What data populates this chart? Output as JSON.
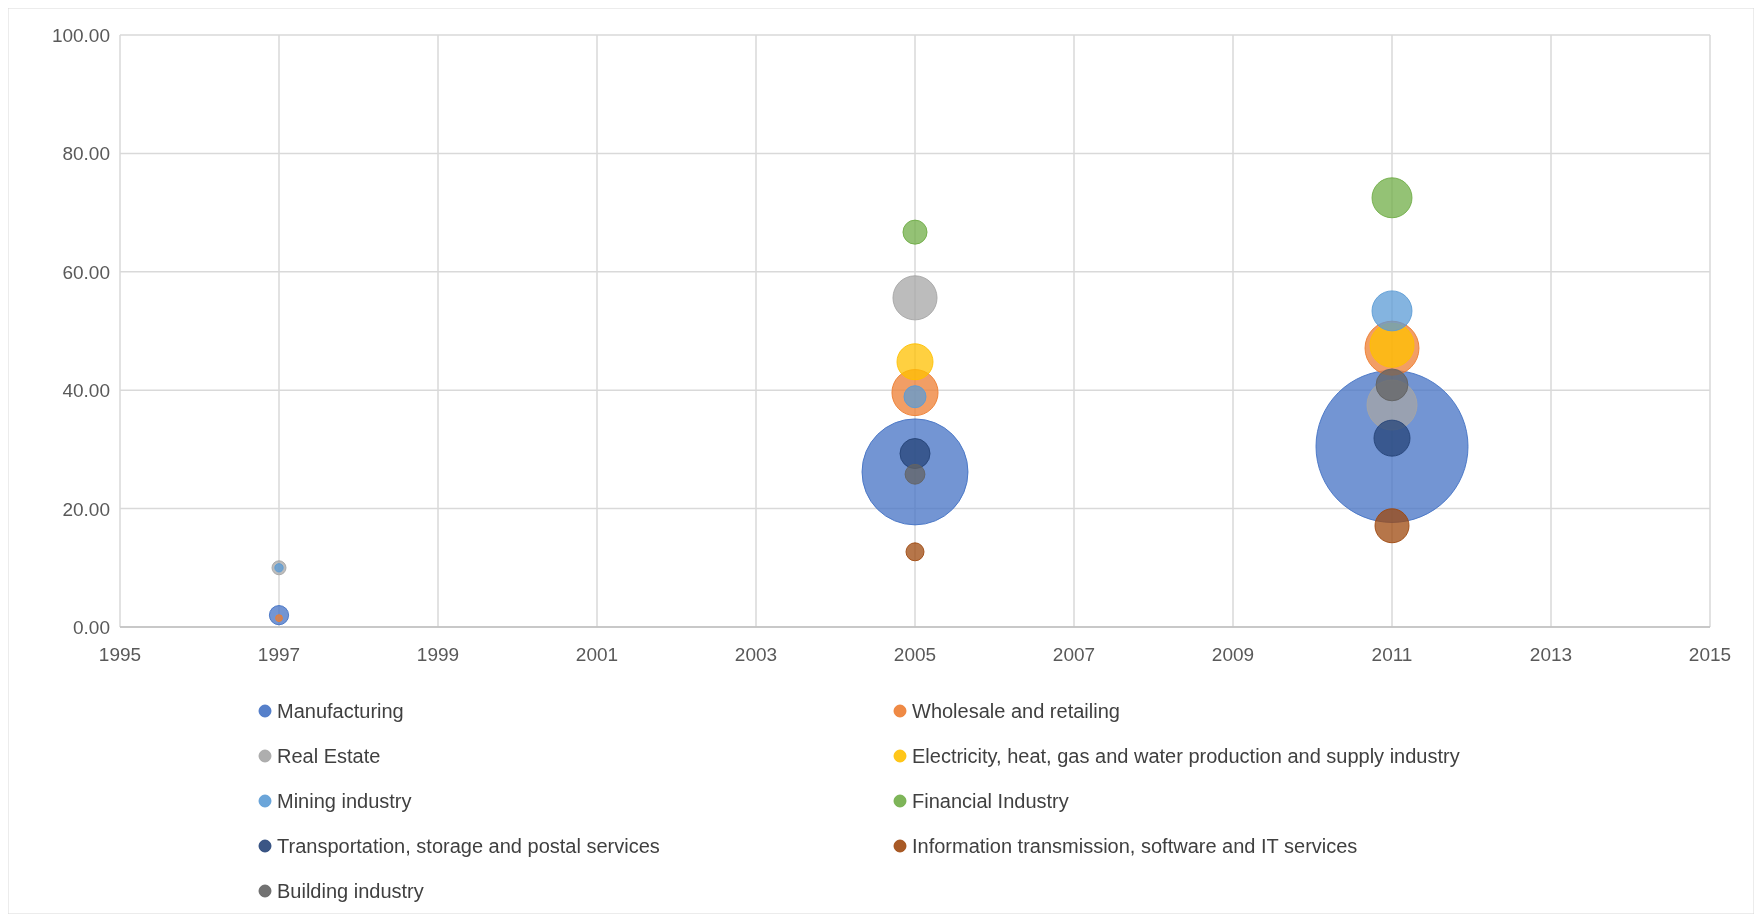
{
  "chart_data": {
    "type": "bubble",
    "x": [
      1997,
      2005,
      2011
    ],
    "xlim": [
      1995,
      2015
    ],
    "xticks": [
      1995,
      1997,
      1999,
      2001,
      2003,
      2005,
      2007,
      2009,
      2011,
      2013,
      2015
    ],
    "ylim": [
      0,
      100
    ],
    "yticks": [
      {
        "value": 0,
        "label": "0.00"
      },
      {
        "value": 20,
        "label": "20.00"
      },
      {
        "value": 40,
        "label": "40.00"
      },
      {
        "value": 60,
        "label": "60.00"
      },
      {
        "value": 80,
        "label": "80.00"
      },
      {
        "value": 100,
        "label": "100.00"
      }
    ],
    "grid": true,
    "legend": "bottom",
    "marker": "circle",
    "series": [
      {
        "name": "Manufacturing",
        "color": "#4472c4",
        "values": [
          2,
          26.2,
          30.5
        ],
        "sizes": [
          0.016,
          0.486,
          1
        ]
      },
      {
        "name": "Wholesale and retailing",
        "color": "#ed7d31",
        "values": [
          1.5,
          39.6,
          47.1
        ],
        "sizes": [
          0.002,
          0.092,
          0.126
        ]
      },
      {
        "name": "Real Estate",
        "color": "#a5a5a5",
        "values": [
          10,
          55.6,
          37.5
        ],
        "sizes": [
          0.0085,
          0.084,
          0.108
        ]
      },
      {
        "name": "Electricity, heat, gas and water production and supply industry",
        "color": "#ffc000",
        "values": [
          null,
          44.8,
          47.6
        ],
        "sizes": [
          null,
          0.056,
          0.084
        ]
      },
      {
        "name": "Mining industry",
        "color": "#5b9bd5",
        "values": [
          10,
          38.9,
          53.4
        ],
        "sizes": [
          0.003,
          0.021,
          0.069
        ]
      },
      {
        "name": "Financial Industry",
        "color": "#70ad47",
        "values": [
          null,
          66.7,
          72.5
        ],
        "sizes": [
          null,
          0.025,
          0.069
        ]
      },
      {
        "name": "Transportation, storage and postal services",
        "color": "#264478",
        "values": [
          null,
          29.3,
          31.9
        ],
        "sizes": [
          null,
          0.039,
          0.056
        ]
      },
      {
        "name": "Information transmission, software and IT services",
        "color": "#9e480e",
        "values": [
          null,
          12.7,
          17.1
        ],
        "sizes": [
          null,
          0.014,
          0.05
        ]
      },
      {
        "name": "Building industry",
        "color": "#636363",
        "values": [
          null,
          25.8,
          40.9
        ],
        "sizes": [
          null,
          0.017,
          0.044
        ]
      }
    ]
  }
}
